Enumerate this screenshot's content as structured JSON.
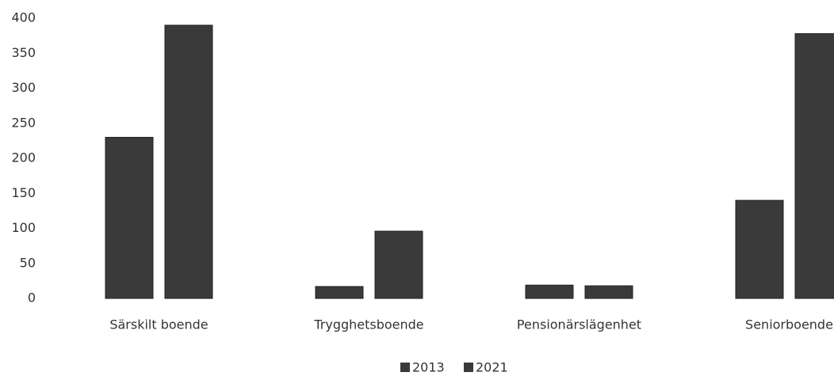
{
  "chart_data": {
    "type": "bar",
    "categories": [
      "Särskilt boende",
      "Trygghetsboende",
      "Pensionärslägenhet",
      "Seniorboende"
    ],
    "series": [
      {
        "name": "2013",
        "color": "#3a3a3a",
        "values": [
          230,
          17,
          19,
          140
        ]
      },
      {
        "name": "2021",
        "color": "#3a3a3a",
        "values": [
          390,
          96,
          18,
          378
        ]
      }
    ],
    "ylim": [
      0,
      400
    ],
    "yticks": [
      0,
      50,
      100,
      150,
      200,
      250,
      300,
      350,
      400
    ],
    "grid": false,
    "legend": "bottom"
  }
}
